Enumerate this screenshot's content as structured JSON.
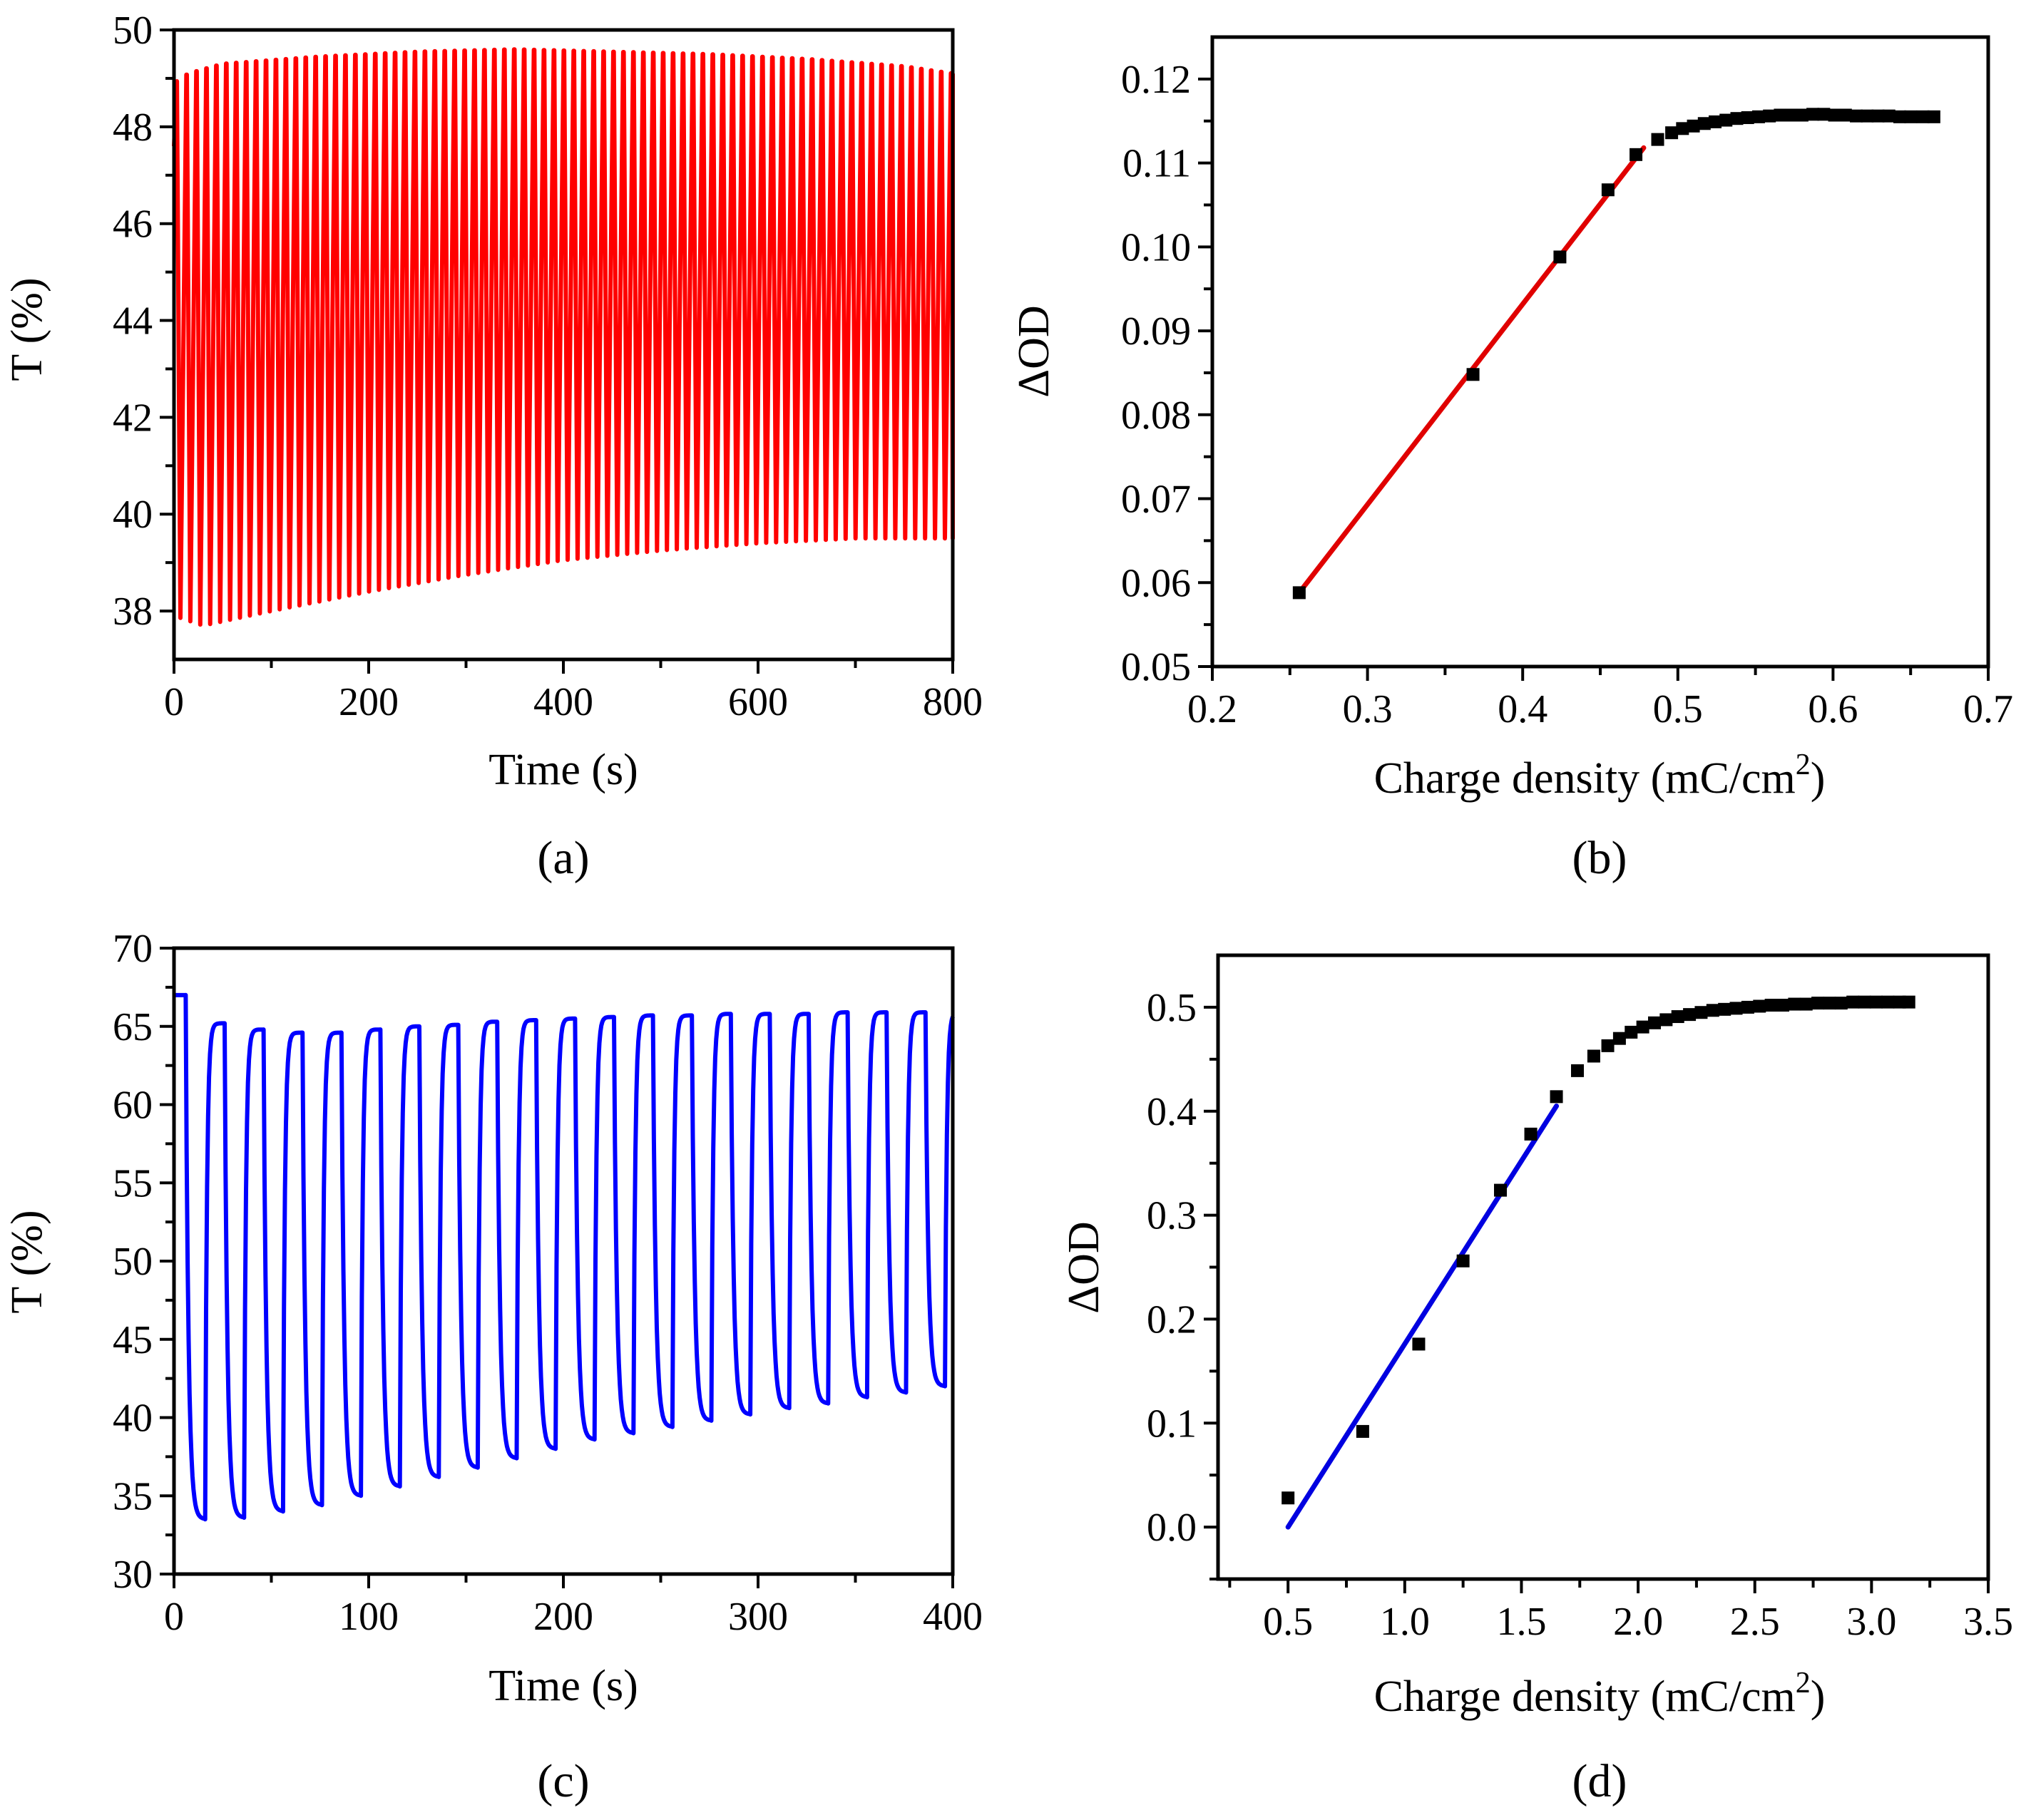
{
  "chart_data": [
    {
      "panel": "(a)",
      "type": "line",
      "xlabel": "Time (s)",
      "ylabel": "T (%)",
      "xlim": [
        0,
        800
      ],
      "ylim": [
        37,
        50
      ],
      "xticks": [
        0,
        200,
        400,
        600,
        800
      ],
      "xticks_minor": [
        100,
        300,
        500,
        700
      ],
      "yticks": [
        38,
        40,
        42,
        44,
        46,
        48,
        50
      ],
      "yticks_minor": [
        39,
        41,
        43,
        45,
        47,
        49
      ],
      "color": "#ff0000",
      "series": [
        {
          "name": "transmittance",
          "period_s": 10.2,
          "start": 47.6,
          "max_envelope": {
            "x": [
              0,
              15,
              50,
              150,
              250,
              350,
              450,
              550,
              650,
              750,
              800
            ],
            "y": [
              48.9,
              49.1,
              49.3,
              49.45,
              49.55,
              49.6,
              49.55,
              49.5,
              49.4,
              49.25,
              49.1
            ]
          },
          "min_envelope": {
            "x": [
              0,
              30,
              100,
              200,
              300,
              400,
              500,
              600,
              700,
              800
            ],
            "y": [
              37.9,
              37.7,
              38.0,
              38.4,
              38.75,
              39.05,
              39.25,
              39.4,
              39.5,
              39.5
            ]
          }
        }
      ]
    },
    {
      "panel": "(b)",
      "type": "scatter",
      "xlabel": "Charge density (mC/cm",
      "xlabel_sup": "2",
      "xlabel_end": ")",
      "ylabel": "ΔOD",
      "xlim": [
        0.2,
        0.7
      ],
      "ylim": [
        0.05,
        0.125
      ],
      "xticks": [
        0.2,
        0.3,
        0.4,
        0.5,
        0.6,
        0.7
      ],
      "xtick_labels": [
        "0.2",
        "0.3",
        "0.4",
        "0.5",
        "0.6",
        "0.7"
      ],
      "xticks_minor": [
        0.25,
        0.35,
        0.45,
        0.55,
        0.65
      ],
      "yticks": [
        0.05,
        0.06,
        0.07,
        0.08,
        0.09,
        0.1,
        0.11,
        0.12
      ],
      "ytick_labels": [
        "0.05",
        "0.06",
        "0.07",
        "0.08",
        "0.09",
        "0.10",
        "0.11",
        "0.12"
      ],
      "yticks_minor": [
        0.055,
        0.065,
        0.075,
        0.085,
        0.095,
        0.105,
        0.115
      ],
      "points": {
        "x": [
          0.256,
          0.368,
          0.424,
          0.455,
          0.473,
          0.487,
          0.496,
          0.503,
          0.51,
          0.517,
          0.524,
          0.531,
          0.538,
          0.545,
          0.552,
          0.559,
          0.566,
          0.573,
          0.58,
          0.587,
          0.594,
          0.601,
          0.608,
          0.615,
          0.622,
          0.629,
          0.636,
          0.643,
          0.65,
          0.658,
          0.665
        ],
        "y": [
          0.0588,
          0.0848,
          0.0988,
          0.1068,
          0.111,
          0.1128,
          0.1136,
          0.1141,
          0.1144,
          0.1147,
          0.1149,
          0.1151,
          0.1153,
          0.1154,
          0.1155,
          0.1156,
          0.1157,
          0.1157,
          0.1157,
          0.1158,
          0.1158,
          0.1157,
          0.1157,
          0.1156,
          0.1156,
          0.1156,
          0.1156,
          0.1155,
          0.1155,
          0.1155,
          0.1155
        ]
      },
      "fit_line": {
        "x": [
          0.256,
          0.478
        ],
        "y": [
          0.0588,
          0.1118
        ],
        "color": "#e00000"
      }
    },
    {
      "panel": "(c)",
      "type": "line",
      "xlabel": "Time (s)",
      "ylabel": "T (%)",
      "xlim": [
        0,
        400
      ],
      "ylim": [
        30,
        70
      ],
      "xticks": [
        0,
        100,
        200,
        300,
        400
      ],
      "xticks_minor": [
        50,
        150,
        250,
        350
      ],
      "yticks": [
        30,
        35,
        40,
        45,
        50,
        55,
        60,
        65,
        70
      ],
      "yticks_minor": [
        32.5,
        37.5,
        42.5,
        47.5,
        52.5,
        57.5,
        62.5,
        67.5
      ],
      "color": "#0000ff",
      "series": [
        {
          "name": "transmittance",
          "initial_plateau": {
            "from_s": 0,
            "to_s": 6,
            "value": 67
          },
          "cycles": [
            {
              "start_s": 6,
              "min": 33.5,
              "max": 65.2
            },
            {
              "start_s": 26,
              "min": 33.6,
              "max": 64.8
            },
            {
              "start_s": 46,
              "min": 34.0,
              "max": 64.6
            },
            {
              "start_s": 66,
              "min": 34.4,
              "max": 64.6
            },
            {
              "start_s": 86,
              "min": 35.0,
              "max": 64.8
            },
            {
              "start_s": 106,
              "min": 35.6,
              "max": 65.0
            },
            {
              "start_s": 126,
              "min": 36.2,
              "max": 65.1
            },
            {
              "start_s": 146,
              "min": 36.8,
              "max": 65.3
            },
            {
              "start_s": 166,
              "min": 37.4,
              "max": 65.4
            },
            {
              "start_s": 186,
              "min": 38.0,
              "max": 65.5
            },
            {
              "start_s": 206,
              "min": 38.6,
              "max": 65.6
            },
            {
              "start_s": 226,
              "min": 39.0,
              "max": 65.7
            },
            {
              "start_s": 246,
              "min": 39.4,
              "max": 65.7
            },
            {
              "start_s": 266,
              "min": 39.8,
              "max": 65.8
            },
            {
              "start_s": 286,
              "min": 40.2,
              "max": 65.8
            },
            {
              "start_s": 306,
              "min": 40.6,
              "max": 65.8
            },
            {
              "start_s": 326,
              "min": 40.9,
              "max": 65.9
            },
            {
              "start_s": 346,
              "min": 41.3,
              "max": 65.9
            },
            {
              "start_s": 366,
              "min": 41.6,
              "max": 65.9
            },
            {
              "start_s": 386,
              "min": 42.0,
              "max": 65.9
            }
          ]
        }
      ]
    },
    {
      "panel": "(d)",
      "type": "scatter",
      "xlabel": "Charge density (mC/cm",
      "xlabel_sup": "2",
      "xlabel_end": ")",
      "ylabel": "ΔOD",
      "xlim": [
        0.2,
        3.5
      ],
      "ylim": [
        -0.05,
        0.55
      ],
      "xticks": [
        0.5,
        1.0,
        1.5,
        2.0,
        2.5,
        3.0,
        3.5
      ],
      "xtick_labels": [
        "0.5",
        "1.0",
        "1.5",
        "2.0",
        "2.5",
        "3.0",
        "3.5"
      ],
      "xticks_minor": [
        0.25,
        0.75,
        1.25,
        1.75,
        2.25,
        2.75,
        3.25
      ],
      "yticks": [
        0.0,
        0.1,
        0.2,
        0.3,
        0.4,
        0.5
      ],
      "ytick_labels": [
        "0.0",
        "0.1",
        "0.2",
        "0.3",
        "0.4",
        "0.5"
      ],
      "yticks_minor": [
        -0.05,
        0.05,
        0.15,
        0.25,
        0.35,
        0.45
      ],
      "points": {
        "x": [
          0.5,
          0.82,
          1.06,
          1.25,
          1.41,
          1.54,
          1.65,
          1.74,
          1.81,
          1.87,
          1.92,
          1.97,
          2.02,
          2.07,
          2.12,
          2.17,
          2.22,
          2.27,
          2.32,
          2.37,
          2.42,
          2.47,
          2.52,
          2.57,
          2.62,
          2.67,
          2.72,
          2.77,
          2.82,
          2.87,
          2.92,
          2.97,
          3.02,
          3.07,
          3.12,
          3.16
        ],
        "y": [
          0.028,
          0.092,
          0.176,
          0.256,
          0.324,
          0.378,
          0.414,
          0.439,
          0.453,
          0.463,
          0.47,
          0.476,
          0.481,
          0.485,
          0.488,
          0.491,
          0.493,
          0.495,
          0.497,
          0.498,
          0.499,
          0.5,
          0.501,
          0.502,
          0.502,
          0.503,
          0.503,
          0.504,
          0.504,
          0.504,
          0.505,
          0.505,
          0.505,
          0.505,
          0.505,
          0.505
        ]
      },
      "fit_line": {
        "x": [
          0.5,
          1.65
        ],
        "y": [
          0.0,
          0.405
        ],
        "color": "#0000e0"
      }
    }
  ]
}
